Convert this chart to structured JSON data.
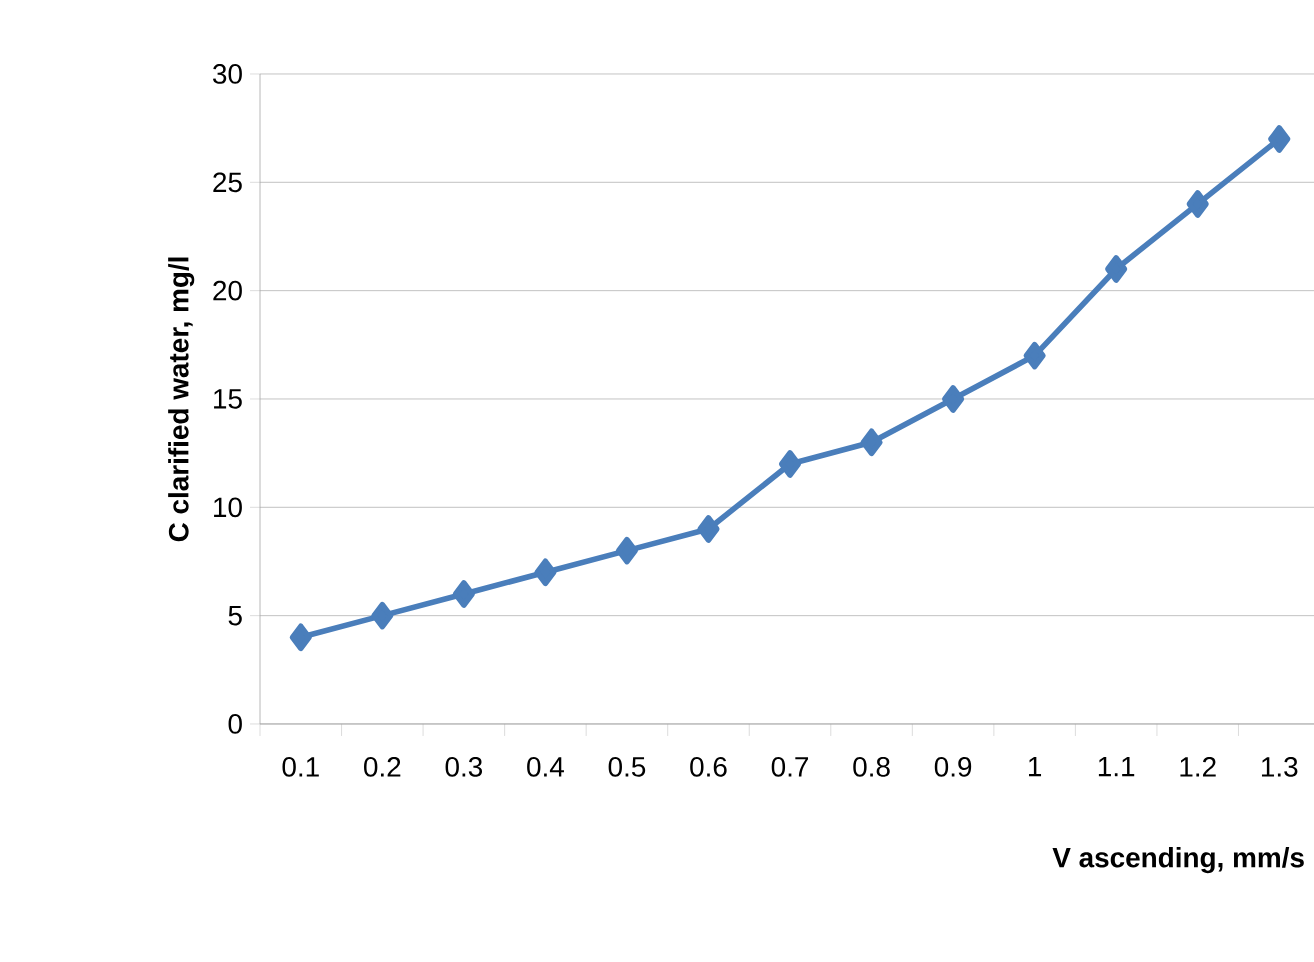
{
  "chart_data": {
    "type": "line",
    "xlabel": "V ascending, mm/s",
    "ylabel": "C clarified water, mg/l",
    "categories": [
      "0.1",
      "0.2",
      "0.3",
      "0.4",
      "0.5",
      "0.6",
      "0.7",
      "0.8",
      "0.9",
      "1",
      "1.1",
      "1.2",
      "1.3"
    ],
    "series": [
      {
        "color": "#4a7ebb",
        "values": [
          4,
          5,
          6,
          7,
          8,
          9,
          12,
          13,
          15,
          17,
          21,
          24,
          27
        ]
      }
    ],
    "ylim": [
      0,
      30
    ],
    "yticks": [
      0,
      5,
      10,
      15,
      20,
      25,
      30
    ],
    "grid": "y",
    "marker": "diamond",
    "line_style": "solid"
  }
}
